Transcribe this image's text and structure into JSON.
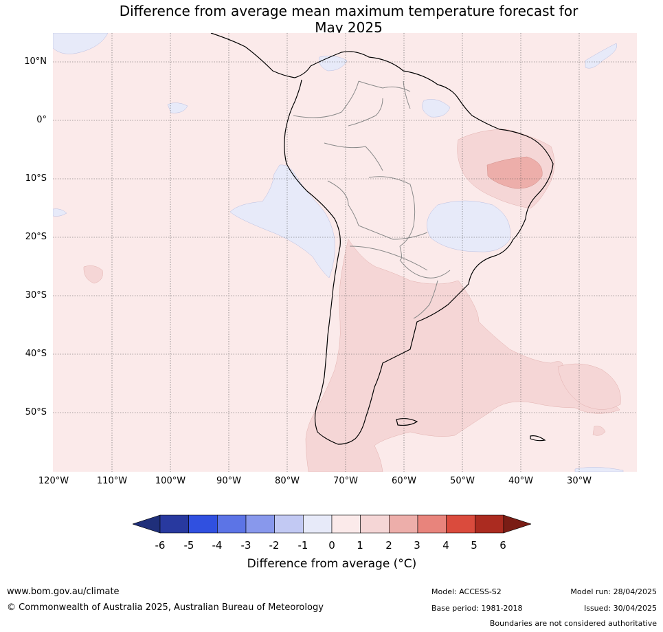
{
  "title_line1": "Difference from average mean maximum temperature forecast for",
  "title_line2": "May 2025",
  "latitude_labels": [
    "10°N",
    "0°",
    "10°S",
    "20°S",
    "30°S",
    "40°S",
    "50°S"
  ],
  "longitude_labels": [
    "120°W",
    "110°W",
    "100°W",
    "90°W",
    "80°W",
    "70°W",
    "60°W",
    "50°W",
    "40°W",
    "30°W"
  ],
  "colorbar": {
    "ticks": [
      "-6",
      "-5",
      "-4",
      "-3",
      "-2",
      "-1",
      "0",
      "1",
      "2",
      "3",
      "4",
      "5",
      "6"
    ],
    "colors": [
      "#28399f",
      "#3050e0",
      "#5c74e6",
      "#8898ec",
      "#c2c9f3",
      "#e7eaf9",
      "#fbeaea",
      "#f5d6d6",
      "#edaeaa",
      "#e8847c",
      "#da4b3d",
      "#ab2b20"
    ],
    "under_color": "#1f2f7a",
    "over_color": "#7a1d15",
    "label": "Difference from average (°C)"
  },
  "map_info": {
    "region": "South America and surrounding oceans",
    "dominant_anomaly": "0 to 1",
    "warm_anomaly_1_to_2": [
      "southern Argentina and South Atlantic",
      "northeastern Brazil"
    ],
    "warm_anomaly_2_to_3": [
      "northeastern Brazil"
    ],
    "cool_anomaly_minus1_to_0": [
      "Pacific off Peru",
      "central Brazil",
      "northern Colombia/Venezuela"
    ]
  },
  "footer": {
    "url": "www.bom.gov.au/climate",
    "copyright": "© Commonwealth of Australia 2025, Australian Bureau of Meteorology",
    "model": "Model: ACCESS-S2",
    "base_period": "Base period: 1981-2018",
    "model_run": "Model run: 28/04/2025",
    "issued": "Issued: 30/04/2025",
    "boundaries_note": "Boundaries are not considered authoritative"
  }
}
